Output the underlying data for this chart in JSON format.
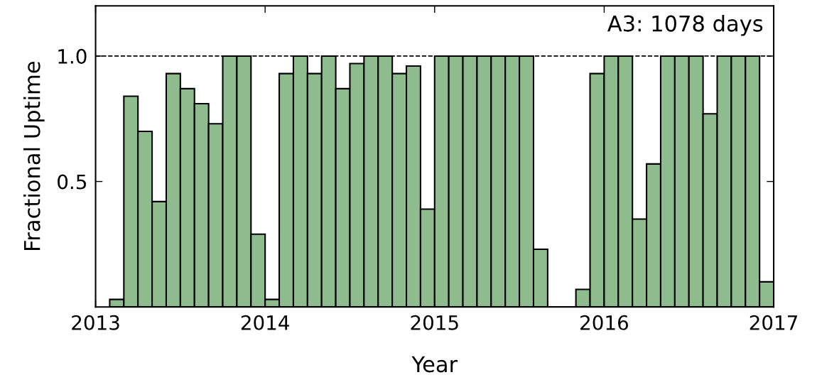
{
  "chart_data": {
    "type": "histogram",
    "xlabel": "Year",
    "ylabel": "Fractional Uptime",
    "color": "#8fbc8f",
    "bins": [
      2013.0833,
      2013.1667,
      2013.25,
      2013.3333,
      2013.4167,
      2013.5,
      2013.5833,
      2013.6667,
      2013.75,
      2013.8333,
      2013.9167,
      2014,
      2014.0833,
      2014.1667,
      2014.25,
      2014.3333,
      2014.4167,
      2014.5,
      2014.5833,
      2014.6667,
      2014.75,
      2014.8333,
      2014.9167,
      2015,
      2015.0833,
      2015.1667,
      2015.25,
      2015.3333,
      2015.4167,
      2015.5,
      2015.5833,
      2015.6667,
      2015.75,
      2015.8333,
      2015.9167,
      2016,
      2016.0833,
      2016.1667,
      2016.25,
      2016.3333,
      2016.4167,
      2016.5,
      2016.5833,
      2016.6667,
      2016.75,
      2016.8333,
      2016.9167,
      2017
    ],
    "values": [
      0.03,
      0.84,
      0.7,
      0.42,
      0.93,
      0.87,
      0.81,
      0.73,
      1.0,
      1.0,
      0.29,
      0.03,
      0.93,
      1.0,
      0.93,
      1.0,
      0.87,
      0.97,
      1.0,
      1.0,
      0.93,
      0.96,
      0.39,
      1.0,
      1.0,
      1.0,
      1.0,
      1.0,
      1.0,
      1.0,
      0.23,
      0,
      0,
      0.07,
      0.93,
      1.0,
      1.0,
      0.35,
      0.57,
      1.0,
      1.0,
      1.0,
      0.77,
      1.0,
      1.0,
      1.0,
      0.1
    ],
    "xlim": [
      2013,
      2017
    ],
    "xticks": [
      2013,
      2014,
      2015,
      2016,
      2017
    ],
    "ylim": [
      0,
      1.2
    ],
    "yticks": [
      {
        "value": 0.5,
        "label": "0.5"
      },
      {
        "value": 1.0,
        "label": "1.0"
      }
    ],
    "ref_lines": [
      {
        "axis": "y",
        "value": 1.0,
        "line_style": "dashed",
        "color": "#000000"
      }
    ],
    "annotations": [
      "A3: 1078 days"
    ],
    "grid": false,
    "legend": false
  }
}
